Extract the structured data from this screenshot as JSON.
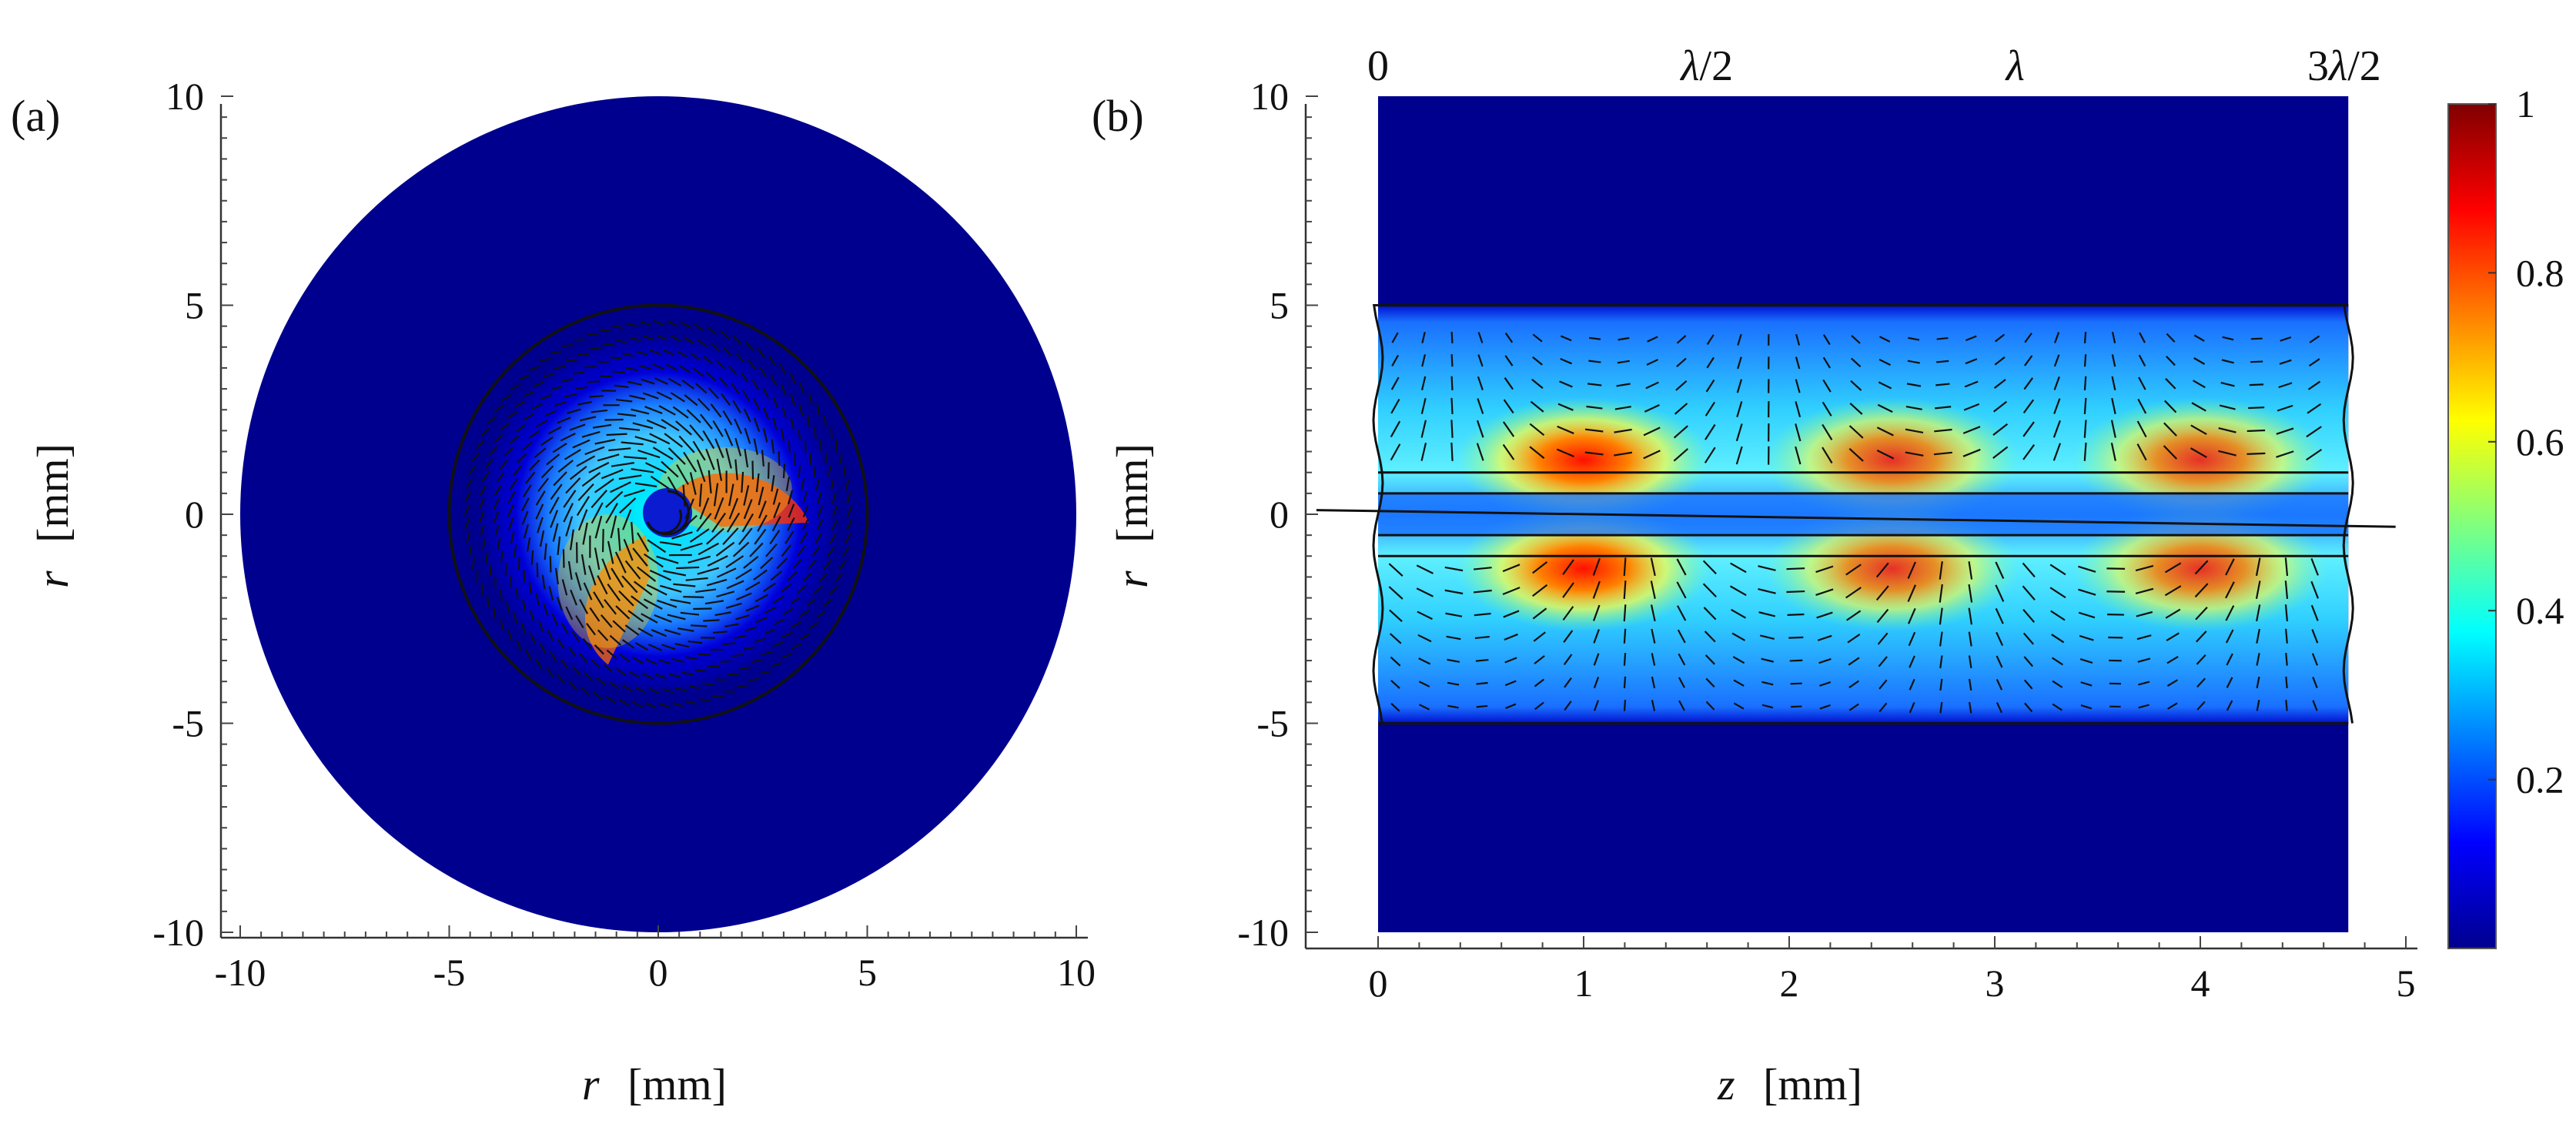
{
  "chart_data": [
    {
      "type": "heatmap",
      "panel_label": "(a)",
      "xlabel_var": "r",
      "xlabel_unit": "[mm]",
      "ylabel_var": "r",
      "ylabel_unit": "[mm]",
      "xlim": [
        -10,
        10
      ],
      "ylim": [
        -10,
        10
      ],
      "xticks": [
        -10,
        -5,
        0,
        5,
        10
      ],
      "yticks": [
        -10,
        -5,
        0,
        5,
        10
      ],
      "xtick_labels": [
        "-10",
        "-5",
        "0",
        "5",
        "10"
      ],
      "ytick_labels": [
        "-10",
        "-5",
        "0",
        "5",
        "10"
      ],
      "outer_radius": 10,
      "core_radius": 5,
      "vortex_center": [
        0,
        0
      ],
      "field": "swirling vector field with intensity maxima near r = 1 mm",
      "background_color": "#00008f"
    },
    {
      "type": "heatmap",
      "panel_label": "(b)",
      "xlabel_var": "z",
      "xlabel_unit": "[mm]",
      "ylabel_var": "r",
      "ylabel_unit": "[mm]",
      "xlim": [
        -0.35,
        5.0
      ],
      "ylim": [
        -10,
        10
      ],
      "xticks": [
        0,
        1,
        2,
        3,
        4,
        5
      ],
      "yticks": [
        -10,
        -5,
        0,
        5,
        10
      ],
      "xtick_labels": [
        "0",
        "1",
        "2",
        "3",
        "4",
        "5"
      ],
      "ytick_labels": [
        "-10",
        "-5",
        "0",
        "5",
        "10"
      ],
      "top_axis_labels": [
        {
          "z": 0,
          "label": "0"
        },
        {
          "z": 1.6,
          "label": "λ/2"
        },
        {
          "z": 3.1,
          "label": "λ"
        },
        {
          "z": 4.7,
          "label": "3λ/2"
        }
      ],
      "domain_z": [
        0,
        4.72
      ],
      "core_band_r": [
        -5,
        5
      ],
      "inner_lines_r": [
        -1,
        -0.5,
        0.5,
        1
      ],
      "hotspot_z": [
        1.0,
        2.5,
        4.0
      ],
      "hotspot_r": [
        1.3,
        -1.3
      ],
      "background_color": "#00008f"
    }
  ],
  "colorbar": {
    "min": 0,
    "max": 1,
    "ticks": [
      0.2,
      0.4,
      0.6,
      0.8,
      1
    ],
    "tick_labels": [
      "0.2",
      "0.4",
      "0.6",
      "0.8",
      "1"
    ],
    "colormap": "jet"
  }
}
